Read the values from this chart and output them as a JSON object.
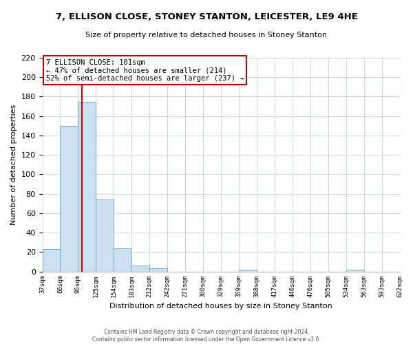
{
  "title": "7, ELLISON CLOSE, STONEY STANTON, LEICESTER, LE9 4HE",
  "subtitle": "Size of property relative to detached houses in Stoney Stanton",
  "xlabel": "Distribution of detached houses by size in Stoney Stanton",
  "ylabel": "Number of detached properties",
  "bar_values": [
    23,
    150,
    175,
    74,
    24,
    6,
    3,
    0,
    0,
    0,
    0,
    2,
    0,
    0,
    0,
    0,
    0,
    2,
    0,
    0
  ],
  "bin_labels": [
    "37sqm",
    "66sqm",
    "95sqm",
    "125sqm",
    "154sqm",
    "183sqm",
    "212sqm",
    "242sqm",
    "271sqm",
    "300sqm",
    "329sqm",
    "359sqm",
    "388sqm",
    "417sqm",
    "446sqm",
    "476sqm",
    "505sqm",
    "534sqm",
    "563sqm",
    "593sqm",
    "622sqm"
  ],
  "bar_color": "#cce0f0",
  "bar_edge_color": "#6aaed6",
  "vline_color": "#cc0000",
  "annotation_title": "7 ELLISON CLOSE: 101sqm",
  "annotation_line1": "← 47% of detached houses are smaller (214)",
  "annotation_line2": "52% of semi-detached houses are larger (237) →",
  "annotation_box_color": "#ffffff",
  "annotation_box_edge": "#cc0000",
  "ylim": [
    0,
    220
  ],
  "yticks": [
    0,
    20,
    40,
    60,
    80,
    100,
    120,
    140,
    160,
    180,
    200,
    220
  ],
  "footer_line1": "Contains HM Land Registry data © Crown copyright and database right 2024.",
  "footer_line2": "Contains public sector information licensed under the Open Government Licence v3.0.",
  "bg_color": "#ffffff",
  "grid_color": "#c8d8ec"
}
